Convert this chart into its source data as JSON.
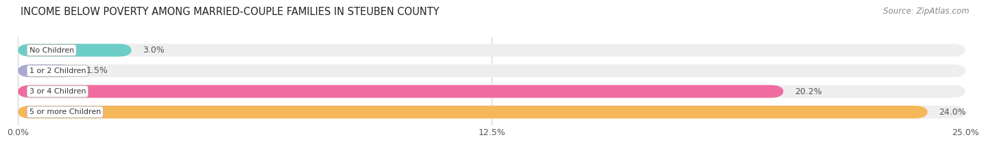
{
  "title": "INCOME BELOW POVERTY AMONG MARRIED-COUPLE FAMILIES IN STEUBEN COUNTY",
  "source": "Source: ZipAtlas.com",
  "categories": [
    "No Children",
    "1 or 2 Children",
    "3 or 4 Children",
    "5 or more Children"
  ],
  "values": [
    3.0,
    1.5,
    20.2,
    24.0
  ],
  "bar_colors": [
    "#6dcdc8",
    "#a9a9d4",
    "#f06ba0",
    "#f5b75a"
  ],
  "bar_bg_color": "#eeeeee",
  "xlim_max": 25.0,
  "xticks": [
    0.0,
    12.5,
    25.0
  ],
  "xticklabels": [
    "0.0%",
    "12.5%",
    "25.0%"
  ],
  "title_fontsize": 10.5,
  "source_fontsize": 8.5,
  "tick_fontsize": 9,
  "bar_label_fontsize": 9,
  "category_fontsize": 8,
  "bar_height": 0.62,
  "background_color": "#ffffff",
  "value_label_color": "#555555",
  "category_label_color": "#333333",
  "grid_color": "#cccccc",
  "spine_color": "#cccccc"
}
